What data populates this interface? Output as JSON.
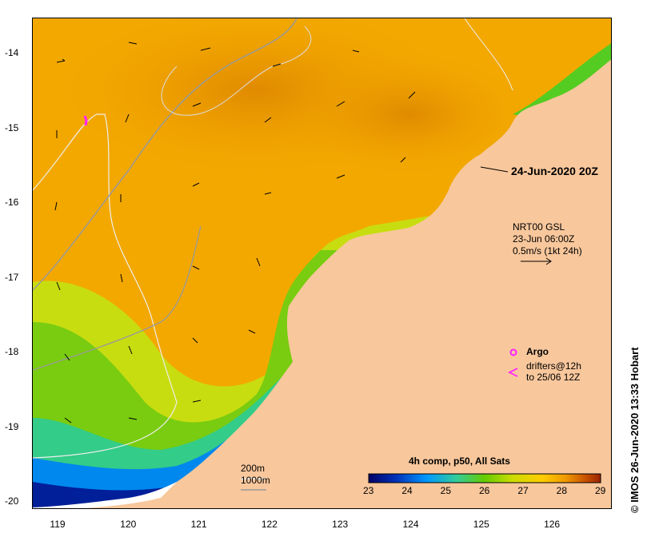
{
  "map": {
    "date_label": "24-Jun-2020 20Z",
    "current_legend": {
      "line1": "NRT00 GSL",
      "line2": "23-Jun 06:00Z",
      "line3": "0.5m/s (1kt 24h)"
    },
    "argo_label": "Argo",
    "drifters_label": "drifters@12h",
    "drifters_to": "to 25/06 12Z",
    "depth_contours": {
      "label1": "200m",
      "label2": "1000m"
    },
    "colorbar": {
      "title": "4h comp, p50, All Sats",
      "ticks": [
        "23",
        "24",
        "25",
        "26",
        "27",
        "28",
        "29"
      ],
      "colors": [
        "#000066",
        "#0033bb",
        "#0099ff",
        "#33cc99",
        "#66cc00",
        "#ccdd00",
        "#ffcc00",
        "#ee9900",
        "#cc5500",
        "#992200"
      ]
    },
    "x_axis_labels": [
      "119",
      "120",
      "121",
      "122",
      "123",
      "124",
      "125",
      "126"
    ],
    "y_axis_labels": [
      "-14",
      "-15",
      "-16",
      "-17",
      "-18",
      "-19",
      "-20"
    ],
    "stamp": "© IMOS 26-Jun-2020 13:33 Hobart",
    "colors": {
      "land": "#f8c79c",
      "warm": "#f0a000",
      "green": "#66cc00",
      "cold": "#0033aa"
    }
  }
}
